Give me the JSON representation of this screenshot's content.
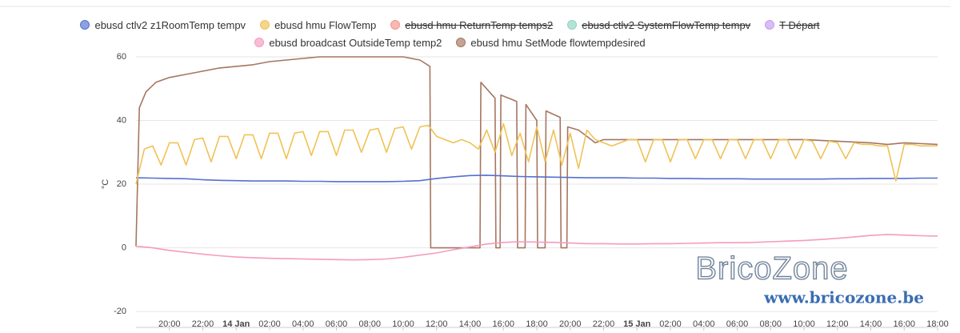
{
  "chart_data": {
    "type": "line",
    "y_label": "°C",
    "xlim": [
      18,
      66
    ],
    "ylim": [
      -25,
      60
    ],
    "yticks": [
      -20,
      0,
      20,
      40,
      60
    ],
    "xticks": [
      {
        "value": 20,
        "label": "20:00"
      },
      {
        "value": 22,
        "label": "22:00"
      },
      {
        "value": 24,
        "label": "14 Jan"
      },
      {
        "value": 26,
        "label": "02:00"
      },
      {
        "value": 28,
        "label": "04:00"
      },
      {
        "value": 30,
        "label": "06:00"
      },
      {
        "value": 32,
        "label": "08:00"
      },
      {
        "value": 34,
        "label": "10:00"
      },
      {
        "value": 36,
        "label": "12:00"
      },
      {
        "value": 38,
        "label": "14:00"
      },
      {
        "value": 40,
        "label": "16:00"
      },
      {
        "value": 42,
        "label": "18:00"
      },
      {
        "value": 44,
        "label": "20:00"
      },
      {
        "value": 46,
        "label": "22:00"
      },
      {
        "value": 48,
        "label": "15 Jan"
      },
      {
        "value": 50,
        "label": "02:00"
      },
      {
        "value": 52,
        "label": "04:00"
      },
      {
        "value": 54,
        "label": "06:00"
      },
      {
        "value": 56,
        "label": "08:00"
      },
      {
        "value": 58,
        "label": "10:00"
      },
      {
        "value": 60,
        "label": "12:00"
      },
      {
        "value": 62,
        "label": "14:00"
      },
      {
        "value": 64,
        "label": "16:00"
      },
      {
        "value": 66,
        "label": "18:00"
      }
    ],
    "grid": true,
    "x": [
      18,
      19,
      20,
      21,
      22,
      23,
      24,
      25,
      26,
      27,
      28,
      29,
      30,
      31,
      32,
      33,
      34,
      35,
      36,
      37,
      38,
      39,
      40,
      41,
      42,
      43,
      44,
      45,
      46,
      47,
      48,
      49,
      50,
      51,
      52,
      53,
      54,
      55,
      56,
      57,
      58,
      59,
      60,
      61,
      62,
      63,
      64,
      65,
      66
    ],
    "series": [
      {
        "name": "ebusd ctlv2 z1RoomTemp tempv",
        "color": "#5470d0",
        "values": [
          22.0,
          21.9,
          21.8,
          21.7,
          21.4,
          21.2,
          21.1,
          21.0,
          21.0,
          21.0,
          20.9,
          20.9,
          20.8,
          20.8,
          20.8,
          20.8,
          20.9,
          21.1,
          21.8,
          22.3,
          22.7,
          22.8,
          22.6,
          22.4,
          22.3,
          22.2,
          22.1,
          22.0,
          22.0,
          22.0,
          21.9,
          21.9,
          21.8,
          21.8,
          21.7,
          21.7,
          21.7,
          21.6,
          21.6,
          21.6,
          21.6,
          21.6,
          21.7,
          21.7,
          21.8,
          21.8,
          21.8,
          21.9,
          21.9
        ]
      },
      {
        "name": "ebusd hmu FlowTemp",
        "color": "#f0c255",
        "x": [
          18,
          18.5,
          19,
          19.5,
          20,
          20.5,
          21,
          21.5,
          22,
          22.5,
          23,
          23.5,
          24,
          24.5,
          25,
          25.5,
          26,
          26.5,
          27,
          27.5,
          28,
          28.5,
          29,
          29.5,
          30,
          30.5,
          31,
          31.5,
          32,
          32.5,
          33,
          33.5,
          34,
          34.5,
          35,
          35.5,
          36,
          36.5,
          37,
          37.5,
          38,
          38.5,
          39,
          39.5,
          40,
          40.5,
          41,
          41.5,
          42,
          42.5,
          43,
          43.5,
          44,
          44.5,
          45,
          45.5,
          46,
          46.5,
          47,
          47.5,
          48,
          48.5,
          49,
          49.5,
          50,
          50.5,
          51,
          51.5,
          52,
          52.5,
          53,
          53.5,
          54,
          54.5,
          55,
          55.5,
          56,
          56.5,
          57,
          57.5,
          58,
          58.5,
          59,
          59.5,
          60,
          60.5,
          61,
          61.5,
          62,
          62.5,
          63,
          63.5,
          64,
          64.5,
          65,
          65.5,
          66
        ],
        "values": [
          20,
          31,
          32,
          26,
          33,
          33,
          26,
          34,
          34.5,
          27,
          35,
          35,
          28,
          35.5,
          35.5,
          28,
          36,
          36,
          28,
          36,
          36.5,
          29,
          36.5,
          36.5,
          29,
          37,
          37,
          30,
          37,
          37.5,
          30,
          37.5,
          38,
          31,
          38,
          38.5,
          35,
          34,
          33,
          34,
          33,
          31,
          37,
          30,
          39,
          29,
          36,
          27,
          38,
          27,
          37,
          26,
          36,
          25,
          37,
          34,
          33,
          32,
          33,
          34,
          34,
          27,
          34,
          34,
          27,
          34,
          34,
          28,
          34,
          34,
          28,
          34,
          34,
          28,
          34,
          34,
          28,
          34,
          34,
          28,
          34,
          33.5,
          28,
          33.5,
          33,
          28,
          33,
          32.5,
          32.5,
          32,
          32,
          21,
          32.5,
          32.5,
          32,
          32,
          32
        ]
      },
      {
        "name": "ebusd hmu ReturnTemp temps2",
        "color": "#f3968c",
        "hidden": true
      },
      {
        "name": "ebusd ctlv2 SystemFlowTemp tempv",
        "color": "#8fd5c2",
        "hidden": true
      },
      {
        "name": "T Départ",
        "color": "#c49cf2",
        "hidden": true
      },
      {
        "name": "ebusd broadcast OutsideTemp temp2",
        "color": "#f59bc0",
        "values": [
          0.5,
          0,
          -0.8,
          -1.4,
          -2.0,
          -2.5,
          -2.9,
          -3.1,
          -3.3,
          -3.4,
          -3.5,
          -3.6,
          -3.7,
          -3.8,
          -3.7,
          -3.5,
          -3.0,
          -2.3,
          -1.6,
          -0.6,
          0.3,
          1.2,
          1.7,
          1.9,
          1.8,
          1.7,
          1.5,
          1.3,
          1.3,
          1.2,
          1.2,
          1.3,
          1.3,
          1.4,
          1.5,
          1.6,
          1.6,
          1.7,
          1.9,
          2.1,
          2.3,
          2.6,
          3.0,
          3.4,
          3.9,
          4.2,
          4.0,
          3.8,
          3.7
        ]
      },
      {
        "name": "ebusd hmu SetMode flowtempdesired",
        "color": "#a57660",
        "x": [
          18,
          18.2,
          18.6,
          19.2,
          20,
          21,
          22,
          23,
          24,
          25,
          26,
          27,
          28,
          29,
          30,
          32,
          34,
          35,
          35.6,
          35.65,
          38.6,
          38.65,
          39.5,
          39.55,
          39.8,
          39.85,
          40.8,
          40.85,
          41.3,
          41.35,
          42,
          42.05,
          42.5,
          42.55,
          43.4,
          43.45,
          43.8,
          43.85,
          44.5,
          45,
          45.5,
          46,
          48,
          50,
          52,
          54,
          56,
          58,
          60,
          62,
          63,
          64,
          66
        ],
        "values": [
          0.5,
          44,
          49,
          52,
          53.5,
          54.5,
          55.5,
          56.5,
          57,
          57.5,
          58.5,
          59,
          59.5,
          60,
          60,
          60,
          60,
          59,
          57,
          0,
          0,
          52,
          47,
          0,
          0,
          48,
          46,
          0,
          0,
          45,
          40,
          0,
          0,
          43,
          41,
          0,
          0,
          38,
          37,
          35,
          33,
          34,
          34,
          34,
          34,
          34,
          34,
          34,
          33.5,
          33,
          32.5,
          33,
          32.5
        ]
      }
    ]
  },
  "watermark": {
    "title": "BricoZone",
    "url": "www.bricozone.be"
  }
}
